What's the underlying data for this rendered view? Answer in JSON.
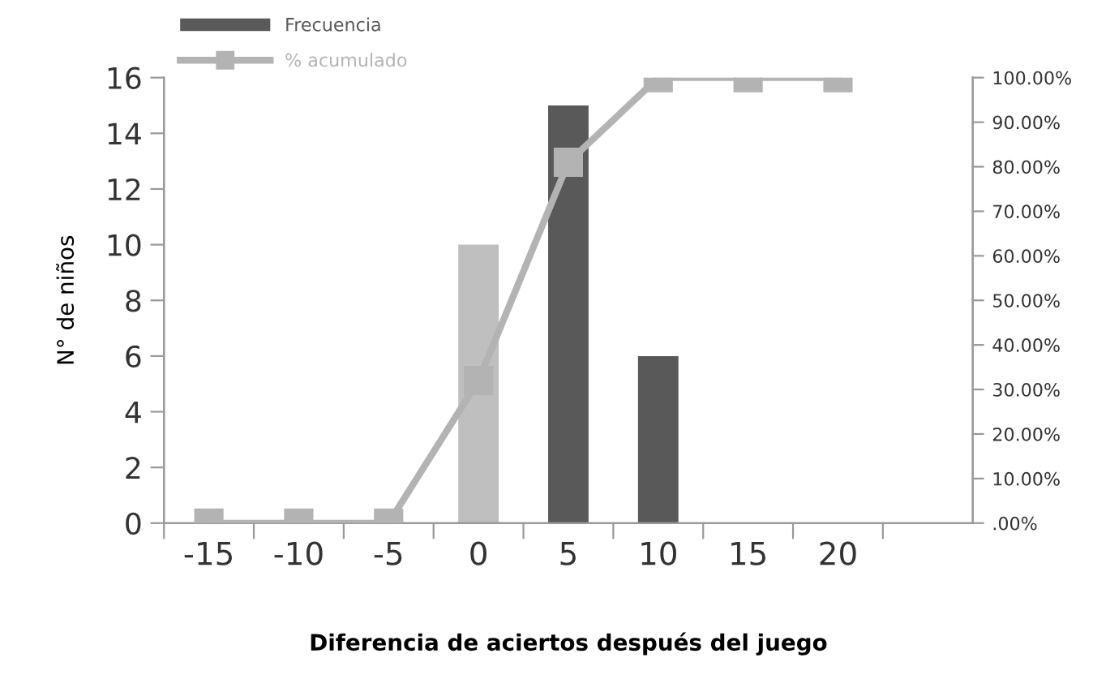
{
  "chart_data": {
    "type": "bar",
    "categories": [
      "-15",
      "-10",
      "-5",
      "0",
      "5",
      "10",
      "15",
      "20",
      null
    ],
    "xlabel": "Diferencia de aciertos después del juego",
    "ylabel": "N° de niños",
    "series": [
      {
        "name": "Frecuencia",
        "color": "#595959",
        "colors": [
          "#595959",
          "#595959",
          "#595959",
          "#bfbfbf",
          "#595959",
          "#595959",
          "#595959",
          "#595959",
          "#595959"
        ],
        "values": [
          0,
          0,
          0,
          10,
          15,
          6,
          0,
          0,
          null
        ]
      },
      {
        "name": "% acumulado",
        "type": "line",
        "axis": "y2",
        "color": "#b3b3b3",
        "marker": "square",
        "values": [
          0,
          0,
          0,
          32,
          81,
          100,
          100,
          100,
          null
        ]
      }
    ],
    "ylim": [
      0,
      16
    ],
    "yticks": [
      0,
      2,
      4,
      6,
      8,
      10,
      12,
      14,
      16
    ],
    "y2lim": [
      0,
      100
    ],
    "y2ticks": [
      {
        "value": 0,
        "label": ".00%"
      },
      {
        "value": 10,
        "label": "10.00%"
      },
      {
        "value": 20,
        "label": "20.00%"
      },
      {
        "value": 30,
        "label": "30.00%"
      },
      {
        "value": 40,
        "label": "40.00%"
      },
      {
        "value": 50,
        "label": "50.00%"
      },
      {
        "value": 60,
        "label": "60.00%"
      },
      {
        "value": 70,
        "label": "70.00%"
      },
      {
        "value": 80,
        "label": "80.00%"
      },
      {
        "value": 90,
        "label": "90.00%"
      },
      {
        "value": 100,
        "label": "100.00%"
      }
    ],
    "grid": false,
    "legend": "top left"
  }
}
